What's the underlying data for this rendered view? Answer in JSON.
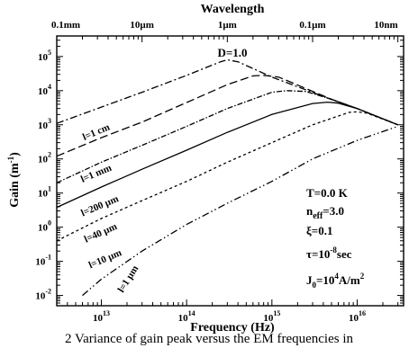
{
  "caption": "2 Variance of gain peak versus the EM frequencies in",
  "chart_data": {
    "type": "line",
    "title": "",
    "xlabel": "Frequency (Hz)",
    "x2label": "Wavelength",
    "ylabel": "Gain (m",
    "ylabel_sup": "-1",
    "ylabel_close": ")",
    "x_scale": "log",
    "y_scale": "log",
    "xlim": [
      3000000000000.0,
      3.5e+16
    ],
    "ylim": [
      0.005,
      400000
    ],
    "grid": false,
    "x_ticks": [
      {
        "value": 10000000000000.0,
        "base": "10",
        "exp": "13"
      },
      {
        "value": 100000000000000.0,
        "base": "10",
        "exp": "14"
      },
      {
        "value": 1000000000000000.0,
        "base": "10",
        "exp": "15"
      },
      {
        "value": 1e+16,
        "base": "10",
        "exp": "16"
      }
    ],
    "y_ticks": [
      {
        "value": 0.01,
        "base": "10",
        "exp": "-2"
      },
      {
        "value": 0.1,
        "base": "10",
        "exp": "-1"
      },
      {
        "value": 1,
        "base": "10",
        "exp": "0"
      },
      {
        "value": 10,
        "base": "10",
        "exp": "1"
      },
      {
        "value": 100,
        "base": "10",
        "exp": "2"
      },
      {
        "value": 1000,
        "base": "10",
        "exp": "3"
      },
      {
        "value": 10000,
        "base": "10",
        "exp": "4"
      },
      {
        "value": 100000,
        "base": "10",
        "exp": "5"
      }
    ],
    "top_ticks": [
      {
        "label": "0.1mm",
        "frequency": 3000000000000.0
      },
      {
        "label": "10µm",
        "frequency": 30000000000000.0
      },
      {
        "label": "1µm",
        "frequency": 300000000000000.0
      },
      {
        "label": "0.1µm",
        "frequency": 3000000000000000.0
      },
      {
        "label": "10nm",
        "frequency": 3e+16
      }
    ],
    "series": [
      {
        "label": "l=1 cm",
        "dash": "8,3,2,3",
        "points": [
          [
            3000000000000.0,
            1100
          ],
          [
            30000000000000.0,
            9000
          ],
          [
            100000000000000.0,
            28000
          ],
          [
            250000000000000.0,
            70000
          ],
          [
            300000000000000.0,
            80000
          ],
          [
            400000000000000.0,
            70000
          ],
          [
            1000000000000000.0,
            25000
          ],
          [
            5000000000000000.0,
            5500
          ],
          [
            1e+16,
            3000
          ],
          [
            3e+16,
            1000
          ]
        ]
      },
      {
        "label": "l=1 mm",
        "dash": "9,4",
        "points": [
          [
            3000000000000.0,
            120
          ],
          [
            10000000000000.0,
            420
          ],
          [
            30000000000000.0,
            1200
          ],
          [
            100000000000000.0,
            4500
          ],
          [
            300000000000000.0,
            15000
          ],
          [
            600000000000000.0,
            27000
          ],
          [
            800000000000000.0,
            28000
          ],
          [
            1200000000000000.0,
            25000
          ],
          [
            5000000000000000.0,
            5600
          ],
          [
            1e+16,
            3000
          ],
          [
            3e+16,
            1000
          ]
        ]
      },
      {
        "label": "l=200 µm",
        "dash": "6,2,1.5,2",
        "points": [
          [
            3000000000000.0,
            20
          ],
          [
            10000000000000.0,
            80
          ],
          [
            30000000000000.0,
            250
          ],
          [
            100000000000000.0,
            900
          ],
          [
            300000000000000.0,
            3000
          ],
          [
            1000000000000000.0,
            9000
          ],
          [
            1500000000000000.0,
            10000
          ],
          [
            2500000000000000.0,
            9500
          ],
          [
            5000000000000000.0,
            5600
          ],
          [
            1e+16,
            3000
          ],
          [
            3e+16,
            1000
          ]
        ]
      },
      {
        "label": "l=40 µm",
        "dash": "",
        "points": [
          [
            3000000000000.0,
            3.8
          ],
          [
            10000000000000.0,
            15
          ],
          [
            30000000000000.0,
            50
          ],
          [
            100000000000000.0,
            180
          ],
          [
            300000000000000.0,
            600
          ],
          [
            1000000000000000.0,
            2000
          ],
          [
            3000000000000000.0,
            4200
          ],
          [
            4500000000000000.0,
            4600
          ],
          [
            6000000000000000.0,
            4300
          ],
          [
            1e+16,
            3000
          ],
          [
            3e+16,
            1000
          ]
        ]
      },
      {
        "label": "l=10 µm",
        "dash": "3,3",
        "points": [
          [
            3000000000000.0,
            0.4
          ],
          [
            10000000000000.0,
            1.8
          ],
          [
            30000000000000.0,
            6
          ],
          [
            100000000000000.0,
            22
          ],
          [
            300000000000000.0,
            80
          ],
          [
            1000000000000000.0,
            300
          ],
          [
            3000000000000000.0,
            1000
          ],
          [
            8000000000000000.0,
            2300
          ],
          [
            1e+16,
            2400
          ],
          [
            1.3e+16,
            2200
          ],
          [
            3e+16,
            1000
          ]
        ]
      },
      {
        "label": "l=1 µm",
        "dash": "8,3,1.5,3,1.5,3",
        "points": [
          [
            6000000000000.0,
            0.01
          ],
          [
            10000000000000.0,
            0.03
          ],
          [
            30000000000000.0,
            0.2
          ],
          [
            100000000000000.0,
            1.2
          ],
          [
            300000000000000.0,
            5
          ],
          [
            1000000000000000.0,
            22
          ],
          [
            3000000000000000.0,
            100
          ],
          [
            1e+16,
            350
          ],
          [
            3e+16,
            900
          ]
        ]
      }
    ],
    "annotations": {
      "D": {
        "text": "D=1.0"
      },
      "T": {
        "text": "T=0.0 K"
      },
      "neff": {
        "prefix": "n",
        "sub": "eff",
        "value": "=3.0"
      },
      "xi": {
        "text": "ξ=0.1"
      },
      "tau": {
        "prefix": "τ=10",
        "sup": "-8",
        "suffix": "sec"
      },
      "J0": {
        "prefix": "J",
        "sub": "0",
        "mid": "=10",
        "sup": "4",
        "unit": "A/m",
        "unit_sup": "2"
      }
    }
  }
}
